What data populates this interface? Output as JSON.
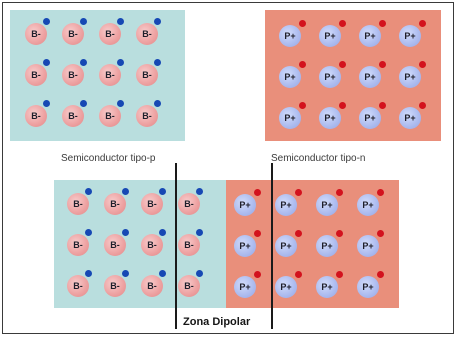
{
  "colors": {
    "p_background": "#b9dede",
    "n_background": "#e98f7b",
    "acceptor_ion": "#eea3a3",
    "donor_ion": "#aebdf0",
    "electron": "#1648b4",
    "hole": "#d3121d"
  },
  "acceptor_label": "B-",
  "donor_label": "P+",
  "captions": {
    "p_type": "Semiconductor tipo-p",
    "n_type": "Semiconductor tipo-n"
  },
  "zone_label": "Zona Dipolar"
}
